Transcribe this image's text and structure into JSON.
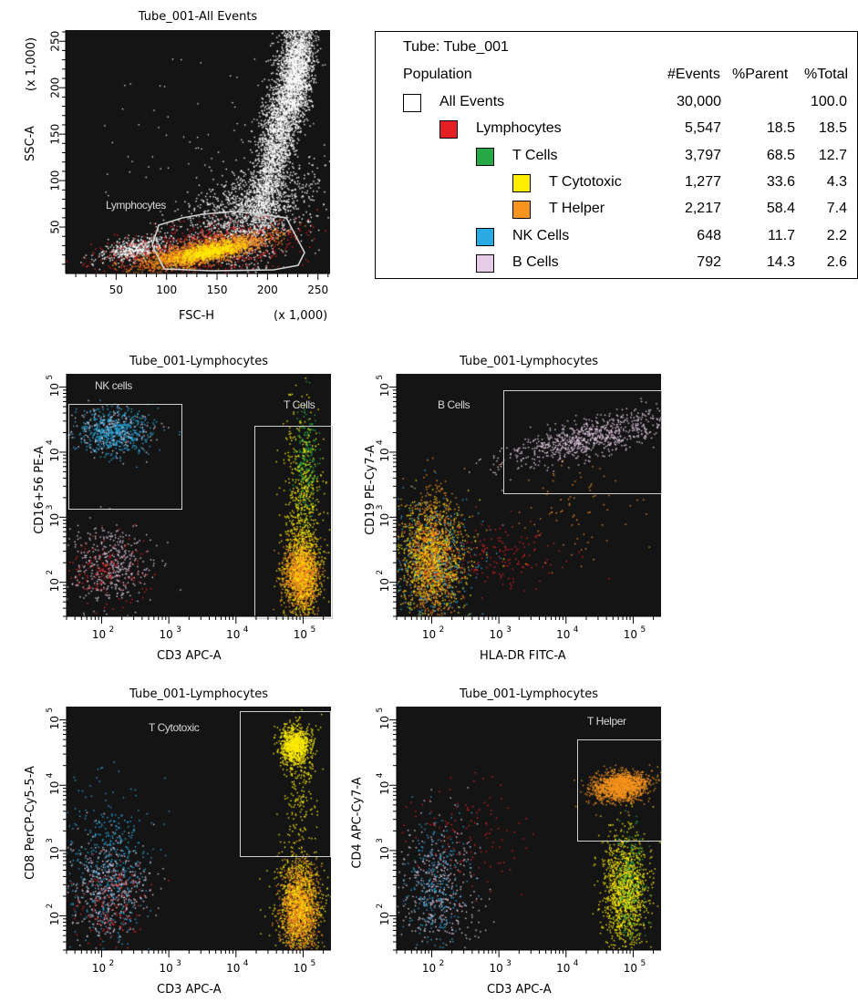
{
  "colors": {
    "all_events": "#ffffff",
    "lymphocytes": "#e32124",
    "t_cells": "#27a844",
    "t_cytotoxic": "#ffed00",
    "t_helper": "#f7941d",
    "nk_cells": "#29abe2",
    "b_cells": "#e6cde6"
  },
  "stats_table": {
    "tube": "Tube: Tube_001",
    "headers": {
      "population": "Population",
      "events": "#Events",
      "parent": "%Parent",
      "total": "%Total"
    },
    "rows": [
      {
        "name": "All Events",
        "color": "#ffffff",
        "events": "30,000",
        "parent": "",
        "total": "100.0"
      },
      {
        "name": "Lymphocytes",
        "color": "#e32124",
        "events": "5,547",
        "parent": "18.5",
        "total": "18.5"
      },
      {
        "name": "T Cells",
        "color": "#27a844",
        "events": "3,797",
        "parent": "68.5",
        "total": "12.7"
      },
      {
        "name": "T Cytotoxic",
        "color": "#ffed00",
        "events": "1,277",
        "parent": "33.6",
        "total": "4.3"
      },
      {
        "name": "T Helper",
        "color": "#f7941d",
        "events": "2,217",
        "parent": "58.4",
        "total": "7.4"
      },
      {
        "name": "NK Cells",
        "color": "#29abe2",
        "events": "648",
        "parent": "11.7",
        "total": "2.2"
      },
      {
        "name": "B Cells",
        "color": "#e6cde6",
        "events": "792",
        "parent": "14.3",
        "total": "2.6"
      }
    ]
  },
  "chart_data": [
    {
      "type": "scatter",
      "title": "Tube_001-All Events",
      "xlabel": "FSC-H",
      "ylabel": "SSC-A",
      "x_unit": "(x 1,000)",
      "y_unit": "(x 1,000)",
      "xlim": [
        0,
        262
      ],
      "ylim": [
        0,
        262
      ],
      "x_ticks": [
        "50",
        "100",
        "150",
        "200",
        "250"
      ],
      "y_ticks": [
        "50",
        "100",
        "150",
        "200",
        "250"
      ],
      "gates": [
        {
          "label": "Lymphocytes"
        }
      ],
      "series": [
        {
          "name": "Lymphocytes",
          "color": "#f7941d",
          "center": [
            125,
            22
          ]
        },
        {
          "name": "All Events",
          "color": "#ffffff",
          "center": [
            235,
            150
          ]
        }
      ]
    },
    {
      "type": "scatter",
      "title": "Tube_001-Lymphocytes",
      "xlabel": "CD3 APC-A",
      "ylabel": "CD16+56 PE-A",
      "x_scale": "log",
      "y_scale": "log",
      "xlim": [
        30,
        260000
      ],
      "ylim": [
        30,
        160000
      ],
      "x_ticks": [
        "10",
        "10",
        "10",
        "10"
      ],
      "x_exponents": [
        "2",
        "3",
        "4",
        "5"
      ],
      "y_ticks": [
        "10",
        "10",
        "10",
        "10"
      ],
      "y_exponents": [
        "2",
        "3",
        "4",
        "5"
      ],
      "gates": [
        {
          "label": "NK cells"
        },
        {
          "label": "T Cells"
        }
      ],
      "series": [
        {
          "name": "NK Cells",
          "color": "#29abe2",
          "center": [
            100,
            10000
          ]
        },
        {
          "name": "T Cells",
          "color": "#f7941d",
          "center": [
            90000,
            70
          ]
        }
      ]
    },
    {
      "type": "scatter",
      "title": "Tube_001-Lymphocytes",
      "xlabel": "HLA-DR FITC-A",
      "ylabel": "CD19 PE-Cy7-A",
      "x_scale": "log",
      "y_scale": "log",
      "xlim": [
        30,
        260000
      ],
      "ylim": [
        30,
        160000
      ],
      "x_ticks": [
        "10",
        "10",
        "10",
        "10"
      ],
      "x_exponents": [
        "2",
        "3",
        "4",
        "5"
      ],
      "y_ticks": [
        "10",
        "10",
        "10",
        "10"
      ],
      "y_exponents": [
        "2",
        "3",
        "4",
        "5"
      ],
      "gates": [
        {
          "label": "B Cells"
        }
      ],
      "series": [
        {
          "name": "B Cells",
          "color": "#e6cde6",
          "center": [
            15000,
            10000
          ]
        },
        {
          "name": "T Cells",
          "color": "#f7941d",
          "center": [
            100,
            100
          ]
        }
      ]
    },
    {
      "type": "scatter",
      "title": "Tube_001-Lymphocytes",
      "xlabel": "CD3 APC-A",
      "ylabel": "CD8 PerCP-Cy5-5-A",
      "x_scale": "log",
      "y_scale": "log",
      "xlim": [
        30,
        260000
      ],
      "ylim": [
        30,
        160000
      ],
      "x_ticks": [
        "10",
        "10",
        "10",
        "10"
      ],
      "x_exponents": [
        "2",
        "3",
        "4",
        "5"
      ],
      "y_ticks": [
        "10",
        "10",
        "10",
        "10"
      ],
      "y_exponents": [
        "2",
        "3",
        "4",
        "5"
      ],
      "gates": [
        {
          "label": "T Cytotoxic"
        }
      ],
      "series": [
        {
          "name": "T Cytotoxic",
          "color": "#ffed00",
          "center": [
            90000,
            60000
          ]
        },
        {
          "name": "T Helper",
          "color": "#f7941d",
          "center": [
            90000,
            150
          ]
        }
      ]
    },
    {
      "type": "scatter",
      "title": "Tube_001-Lymphocytes",
      "xlabel": "CD3 APC-A",
      "ylabel": "CD4 APC-Cy7-A",
      "x_scale": "log",
      "y_scale": "log",
      "xlim": [
        30,
        260000
      ],
      "ylim": [
        30,
        160000
      ],
      "x_ticks": [
        "10",
        "10",
        "10",
        "10"
      ],
      "x_exponents": [
        "2",
        "3",
        "4",
        "5"
      ],
      "y_ticks": [
        "10",
        "10",
        "10",
        "10"
      ],
      "y_exponents": [
        "2",
        "3",
        "4",
        "5"
      ],
      "gates": [
        {
          "label": "T Helper"
        }
      ],
      "series": [
        {
          "name": "T Helper",
          "color": "#f7941d",
          "center": [
            70000,
            15000
          ]
        },
        {
          "name": "T Cytotoxic",
          "color": "#ffed00",
          "center": [
            70000,
            300
          ]
        }
      ]
    }
  ]
}
